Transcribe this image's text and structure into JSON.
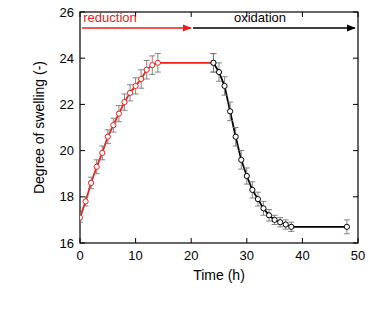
{
  "chart_data": {
    "type": "line",
    "x_label": "Time (h)",
    "y_label": "Degree of swelling (-)",
    "xlim": [
      0,
      50
    ],
    "ylim": [
      16,
      26
    ],
    "xticks": [
      0,
      10,
      20,
      30,
      40,
      50
    ],
    "yticks": [
      16,
      18,
      20,
      22,
      24,
      26
    ],
    "grid": false,
    "marker": "circle",
    "series": [
      {
        "name": "reduction",
        "color": "#e8211c",
        "x": [
          0,
          1,
          2,
          3,
          4,
          5,
          6,
          7,
          8,
          9,
          10,
          11,
          12,
          13,
          14,
          24
        ],
        "values": [
          17.1,
          17.8,
          18.6,
          19.3,
          19.9,
          20.6,
          21.1,
          21.6,
          22.1,
          22.5,
          22.8,
          23.1,
          23.5,
          23.7,
          23.8,
          23.8
        ],
        "errors": [
          0.2,
          0.2,
          0.25,
          0.3,
          0.3,
          0.3,
          0.3,
          0.35,
          0.35,
          0.35,
          0.35,
          0.4,
          0.4,
          0.4,
          0.4,
          0.4
        ]
      },
      {
        "name": "oxidation",
        "color": "#000000",
        "x": [
          24,
          25,
          26,
          27,
          28,
          29,
          30,
          31,
          32,
          33,
          34,
          35,
          36,
          37,
          38,
          48
        ],
        "values": [
          23.8,
          23.4,
          22.8,
          21.7,
          20.6,
          19.6,
          18.9,
          18.3,
          17.9,
          17.5,
          17.2,
          17.0,
          16.9,
          16.8,
          16.7,
          16.7
        ],
        "errors": [
          0.4,
          0.4,
          0.4,
          0.4,
          0.4,
          0.4,
          0.35,
          0.35,
          0.3,
          0.3,
          0.25,
          0.2,
          0.2,
          0.2,
          0.2,
          0.3
        ]
      }
    ]
  }
}
